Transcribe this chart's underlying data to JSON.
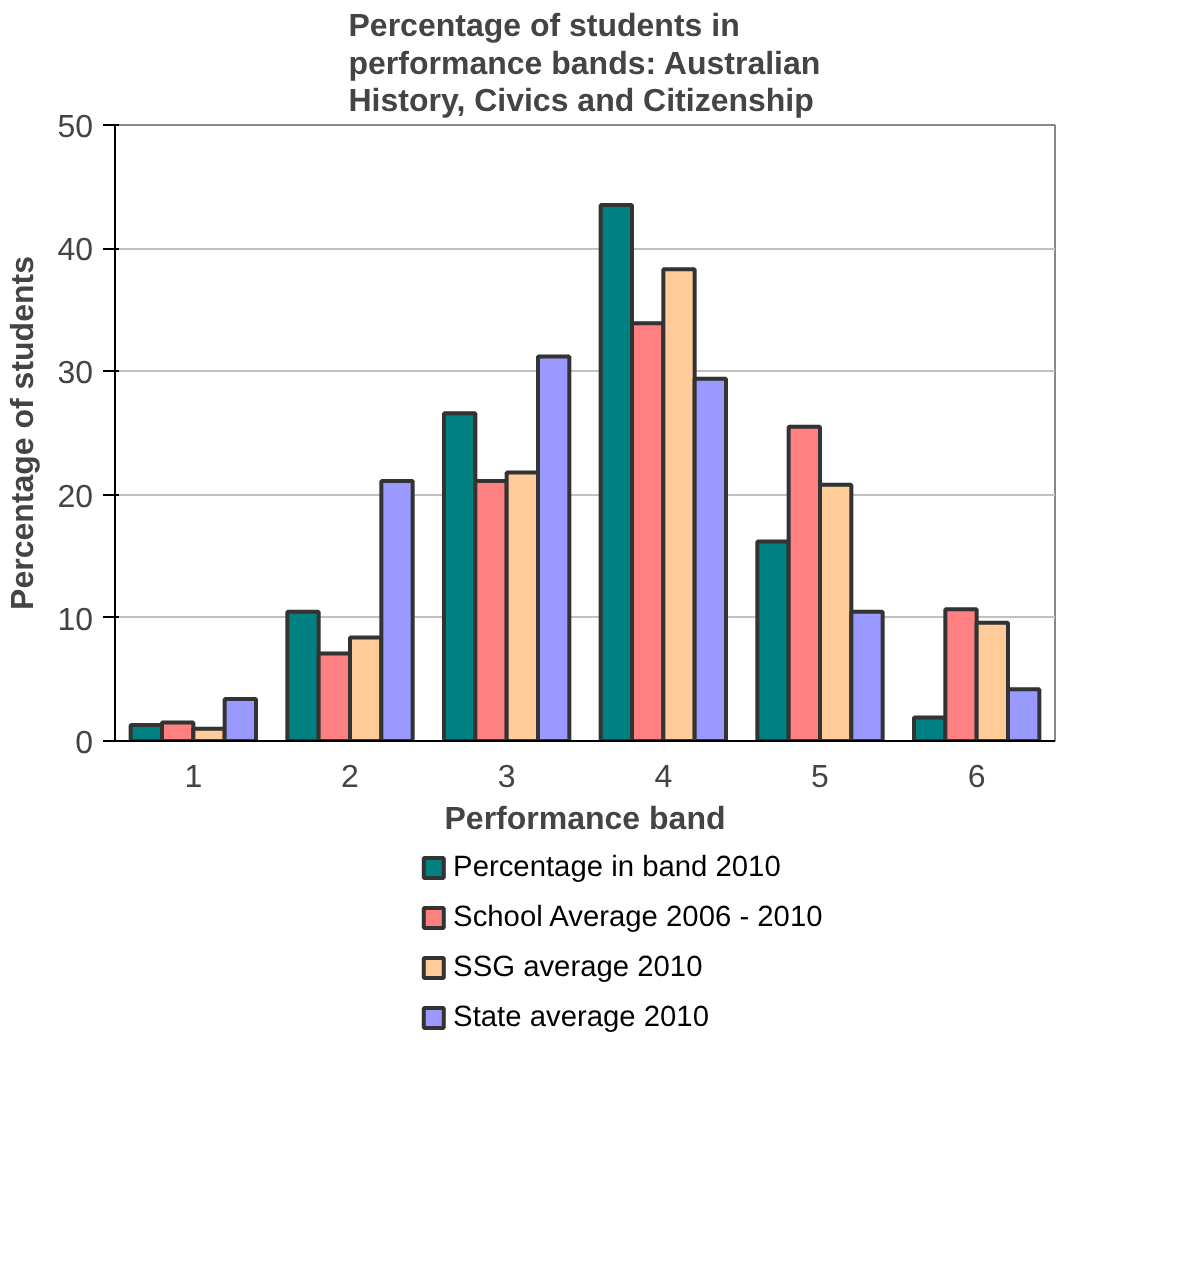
{
  "chart_data": {
    "type": "bar",
    "title": "Percentage of students in performance bands: Australian History, Civics and Citizenship",
    "xlabel": "Performance band",
    "ylabel": "Percentage of students",
    "categories": [
      "1",
      "2",
      "3",
      "4",
      "5",
      "6"
    ],
    "series": [
      {
        "name": "Percentage in band 2010",
        "color": "#008080",
        "values": [
          1.3,
          10.5,
          26.6,
          43.5,
          16.2,
          1.9
        ]
      },
      {
        "name": "School Average 2006 - 2010",
        "color": "#ff8080",
        "values": [
          1.5,
          7.1,
          21.1,
          33.9,
          25.5,
          10.7
        ]
      },
      {
        "name": "SSG average 2010",
        "color": "#ffcc99",
        "values": [
          1.0,
          8.4,
          21.8,
          38.3,
          20.8,
          9.6
        ]
      },
      {
        "name": "State average 2010",
        "color": "#9999ff",
        "values": [
          3.4,
          21.1,
          31.2,
          29.4,
          10.5,
          4.2
        ]
      }
    ],
    "ylim": [
      0,
      50
    ],
    "yticks": [
      0,
      10,
      20,
      30,
      40,
      50
    ],
    "grid": "y",
    "legend": "bottom"
  }
}
